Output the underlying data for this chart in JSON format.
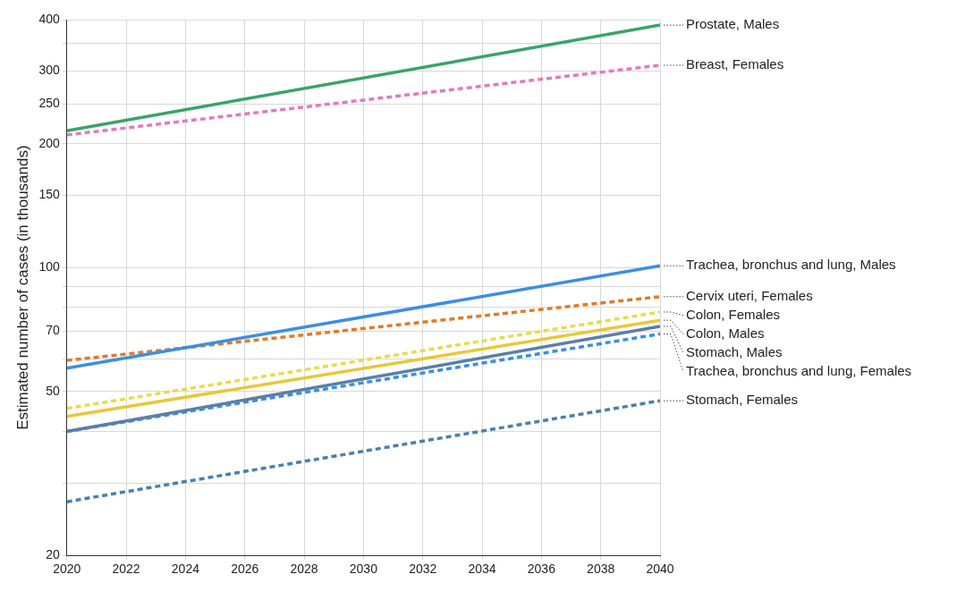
{
  "chart_data": {
    "type": "line",
    "ylabel": "Estimated number of cases (in thousands)",
    "x": [
      2020,
      2040
    ],
    "xlim": [
      2020,
      2040
    ],
    "xticks": [
      2020,
      2022,
      2024,
      2026,
      2028,
      2030,
      2032,
      2034,
      2036,
      2038,
      2040
    ],
    "ylim": [
      20,
      400
    ],
    "yticks": [
      20,
      {
        "value": 30,
        "label": null
      },
      {
        "value": 40,
        "label": null
      },
      50,
      {
        "value": 60,
        "label": null
      },
      70,
      {
        "value": 80,
        "label": null
      },
      {
        "value": 90,
        "label": null
      },
      100,
      150,
      200,
      250,
      300,
      {
        "value": 350,
        "label": null
      },
      400
    ],
    "log": "y",
    "grid": true,
    "marker": "none",
    "series": [
      {
        "name": "Prostate, Males",
        "color": "#3aa36a",
        "line_style": "solid",
        "values": [
          215,
          388
        ]
      },
      {
        "name": "Breast, Females",
        "color": "#e07bbf",
        "line_style": "dashed",
        "values": [
          210,
          310
        ]
      },
      {
        "name": "Trachea, bronchus and lung, Males",
        "color": "#3b8fe0",
        "line_style": "solid",
        "values": [
          57,
          101
        ]
      },
      {
        "name": "Cervix uteri, Females",
        "color": "#e07b2a",
        "line_style": "dashed",
        "values": [
          59.5,
          85
        ]
      },
      {
        "name": "Colon, Females",
        "color": "#e8dc4a",
        "line_style": "dashed",
        "values": [
          45.5,
          78
        ]
      },
      {
        "name": "Colon, Males",
        "color": "#e8c83a",
        "line_style": "solid",
        "values": [
          43.5,
          74.5
        ]
      },
      {
        "name": "Stomach, Males",
        "color": "#5a7fa8",
        "line_style": "solid",
        "values": [
          40,
          72
        ]
      },
      {
        "name": "Trachea, bronchus and lung, Females",
        "color": "#3b8fe0",
        "line_style": "dashed",
        "values": [
          40,
          69
        ]
      },
      {
        "name": "Stomach, Females",
        "color": "#4a7fb0",
        "line_style": "dashed",
        "values": [
          27,
          47.5
        ]
      }
    ]
  }
}
